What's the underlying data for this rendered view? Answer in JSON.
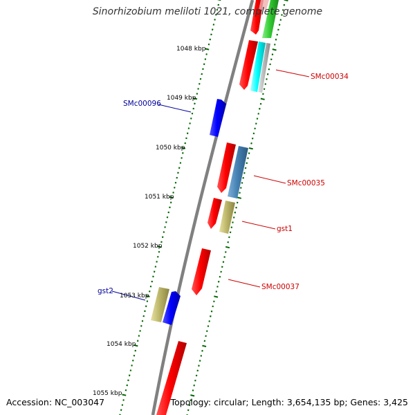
{
  "title": "Sinorhizobium meliloti 1021, complete genome",
  "footer": {
    "accession": "Accession: NC_003047",
    "summary": "Topology: circular; Length: 3,654,135 bp; Genes: 3,425"
  },
  "ticks": [
    "1048 kbp",
    "1049 kbp",
    "1050 kbp",
    "1051 kbp",
    "1052 kbp",
    "1053 kbp",
    "1054 kbp",
    "1055 kbp"
  ],
  "labels": [
    {
      "name": "SMc00034",
      "color": "#cc0000"
    },
    {
      "name": "SMc00096",
      "color": "#000099"
    },
    {
      "name": "SMc00035",
      "color": "#cc0000"
    },
    {
      "name": "gst1",
      "color": "#cc0000"
    },
    {
      "name": "SMc00037",
      "color": "#cc0000"
    },
    {
      "name": "gst2",
      "color": "#000099"
    }
  ],
  "colors": {
    "backbone": "#808080",
    "tick": "#006600",
    "cds_red": "#ff0000",
    "cds_blue": "#0000ff",
    "cds_steel": "#4682b4",
    "cds_khaki": "#bdb76b",
    "cds_cyan": "#00ffff",
    "cds_green": "#33cc33",
    "cds_gray": "#bbbbbb"
  }
}
